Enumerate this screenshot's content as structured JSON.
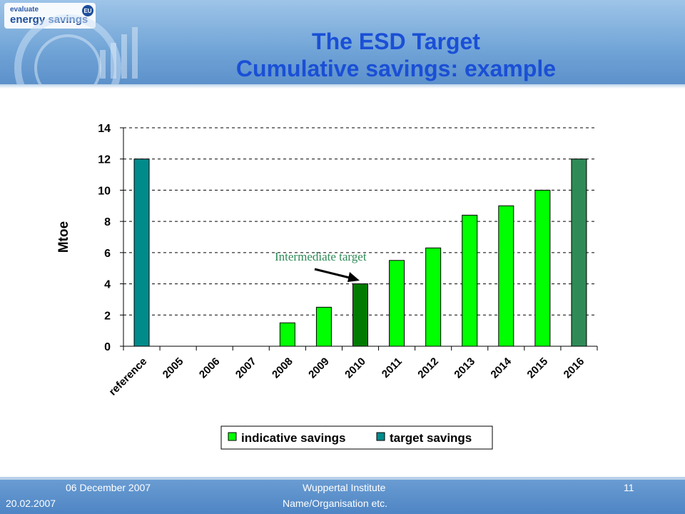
{
  "header": {
    "logo_top": "evaluate",
    "logo_main": "energy savings",
    "logo_badge": "EU",
    "title_line1": "The ESD Target",
    "title_line2": "Cumulative savings: example"
  },
  "footer": {
    "date_top": "06 December 2007",
    "date_bottom": "20.02.2007",
    "institute": "Wuppertal Institute",
    "organisation": "Name/Organisation etc.",
    "page_number": "11"
  },
  "colors": {
    "indicative": "#00ff00",
    "intermediate": "#007a00",
    "target_reference": "#008b8b",
    "target_2016": "#2e8b57",
    "title": "#1a4fd6",
    "annotation": "#2e8b57"
  },
  "chart_data": {
    "type": "bar",
    "categories": [
      "reference",
      "2005",
      "2006",
      "2007",
      "2008",
      "2009",
      "2010",
      "2011",
      "2012",
      "2013",
      "2014",
      "2015",
      "2016"
    ],
    "values": [
      12,
      null,
      null,
      null,
      1.5,
      2.5,
      4,
      5.5,
      6.3,
      8.4,
      9,
      10,
      12
    ],
    "series_of_bar": [
      "target savings",
      null,
      null,
      null,
      "indicative savings",
      "indicative savings",
      "indicative savings",
      "indicative savings",
      "indicative savings",
      "indicative savings",
      "indicative savings",
      "indicative savings",
      "target savings"
    ],
    "highlight_category": "2010",
    "ylabel": "Mtoe",
    "xlabel": "",
    "ylim": [
      0,
      14
    ],
    "yticks": [
      0,
      2,
      4,
      6,
      8,
      10,
      12,
      14
    ],
    "grid": "horizontal dashed",
    "legend": {
      "placement": "bottom",
      "entries": [
        {
          "label": "indicative savings",
          "color": "#00ff00"
        },
        {
          "label": "target savings",
          "color": "#008b8b"
        }
      ]
    },
    "annotation": {
      "text": "Intermediate target",
      "points_to": "2010"
    }
  }
}
